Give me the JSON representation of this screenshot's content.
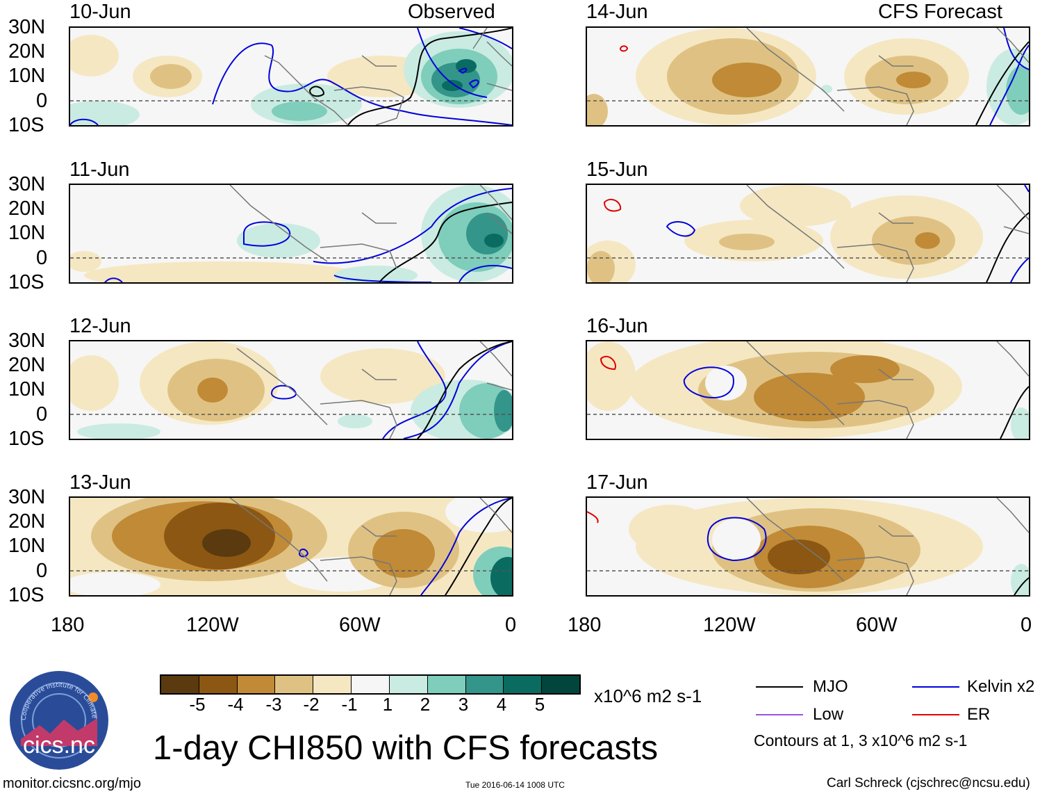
{
  "panels": [
    {
      "date": "10-Jun",
      "tag": "Observed"
    },
    {
      "date": "11-Jun",
      "tag": ""
    },
    {
      "date": "12-Jun",
      "tag": ""
    },
    {
      "date": "13-Jun",
      "tag": ""
    },
    {
      "date": "14-Jun",
      "tag": "CFS Forecast"
    },
    {
      "date": "15-Jun",
      "tag": ""
    },
    {
      "date": "16-Jun",
      "tag": ""
    },
    {
      "date": "17-Jun",
      "tag": ""
    }
  ],
  "lat_ticks": [
    "30N",
    "20N",
    "10N",
    "0",
    "10S"
  ],
  "lon_ticks": [
    "180",
    "120W",
    "60W",
    "0"
  ],
  "colorbar": {
    "colors": [
      "#5a3a0e",
      "#8c5712",
      "#c08a37",
      "#dfc283",
      "#f5e7c2",
      "#f6f6f6",
      "#c9ebe2",
      "#7fcdbb",
      "#34958a",
      "#0a6b61",
      "#01453c"
    ],
    "labels": [
      "-5",
      "-4",
      "-3",
      "-2",
      "-1",
      "1",
      "2",
      "3",
      "4",
      "5"
    ],
    "units": "x10^6 m2 s-1"
  },
  "title": "1-day CHI850 with CFS forecasts",
  "legend": {
    "items": [
      {
        "label": "MJO",
        "color": "#000000"
      },
      {
        "label": "Kelvin x2",
        "color": "#0000dd"
      },
      {
        "label": "Low",
        "color": "#9b4fe8"
      },
      {
        "label": "ER",
        "color": "#e00000"
      }
    ],
    "note": "Contours at 1, 3 x10^6 m2 s-1"
  },
  "logo_text": "cics.nc",
  "logo_ring_text": "Cooperative Institute for Climate and Satellites",
  "footer": {
    "url": "monitor.cicsnc.org/mjo",
    "timestamp": "Tue 2016-06-14 1008 UTC",
    "author": "Carl Schreck (cjschrec@ncsu.edu)"
  }
}
